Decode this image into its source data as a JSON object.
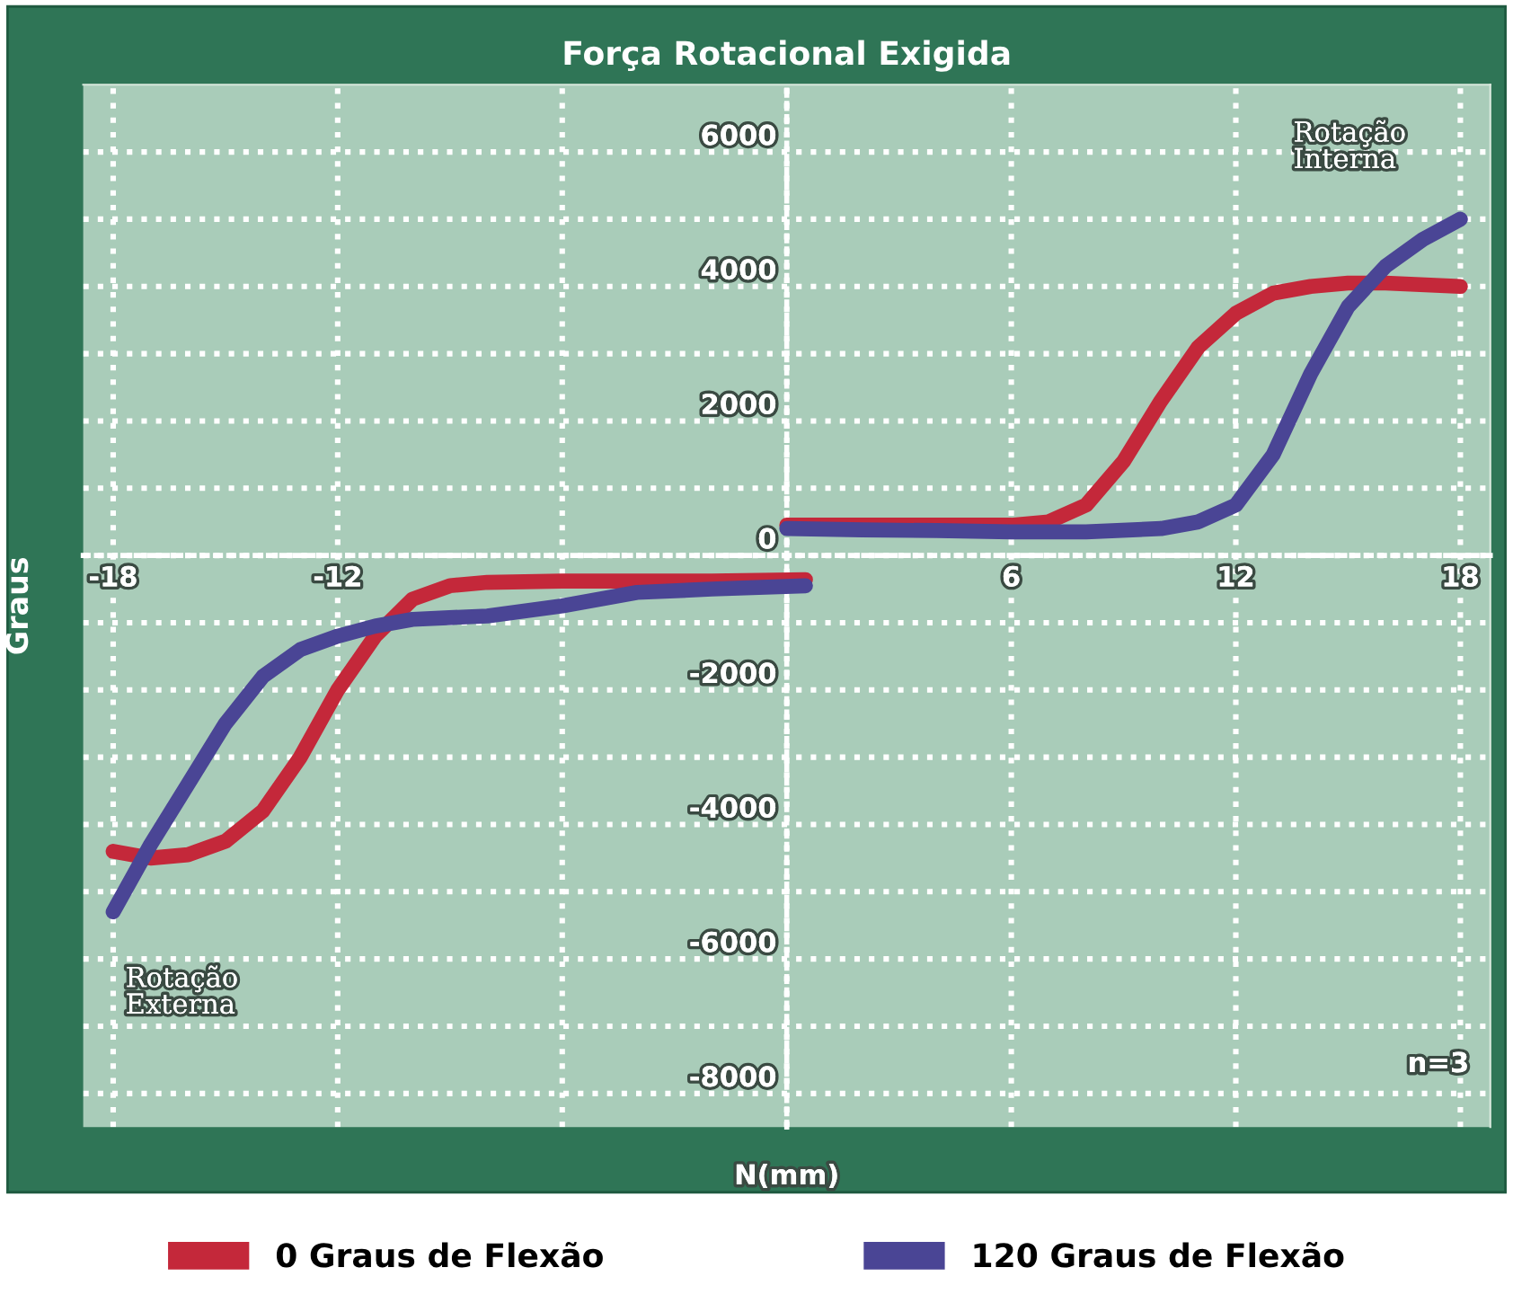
{
  "chart_data": {
    "type": "line",
    "title": "Força Rotacional Exigida",
    "xlabel": "N(mm)",
    "ylabel": "Graus",
    "xlim": [
      -18.8,
      18.8
    ],
    "ylim": [
      -8500,
      7000
    ],
    "xticks": [
      -18,
      -12,
      {
        "value": -6,
        "label": null
      },
      {
        "value": 0,
        "label": null
      },
      6,
      12,
      18
    ],
    "yticks": [
      -8000,
      {
        "value": -7000,
        "label": null
      },
      -6000,
      {
        "value": -5000,
        "label": null
      },
      -4000,
      {
        "value": -3000,
        "label": null
      },
      -2000,
      {
        "value": -1000,
        "label": null
      },
      0,
      {
        "value": 1000,
        "label": null
      },
      2000,
      {
        "value": 3000,
        "label": null
      },
      4000,
      {
        "value": 5000,
        "label": null
      },
      6000
    ],
    "grid": true,
    "legend": "bottom",
    "line_style": "solid",
    "marker": "none",
    "series": [
      {
        "name": "0 Graus de Flexão",
        "color": "#c4283a",
        "x": [
          -18,
          -17,
          -16,
          -15,
          -14,
          -13,
          -12,
          -11,
          -10,
          -9,
          -8,
          -6,
          -4,
          -2,
          0.5,
          0.25,
          0,
          2,
          4,
          6,
          7,
          8,
          9,
          10,
          11,
          12,
          13,
          14,
          15,
          16,
          18
        ],
        "values": [
          -4400,
          -4500,
          -4450,
          -4250,
          -3800,
          -3000,
          -2000,
          -1200,
          -650,
          -450,
          -400,
          -380,
          -380,
          -380,
          -360,
          null,
          450,
          450,
          450,
          450,
          500,
          750,
          1400,
          2300,
          3100,
          3600,
          3900,
          4000,
          4050,
          4050,
          4000
        ]
      },
      {
        "name": "120 Graus de Flexão",
        "color": "#4a4595",
        "x": [
          -18,
          -17,
          -16,
          -15,
          -14,
          -13,
          -12,
          -11,
          -10,
          -8,
          -6,
          -4,
          -2,
          0.5,
          0.25,
          0,
          2,
          4,
          6,
          8,
          10,
          11,
          12,
          13,
          14,
          15,
          16,
          17,
          18
        ],
        "values": [
          -5300,
          -4300,
          -3400,
          -2500,
          -1800,
          -1400,
          -1200,
          -1050,
          -950,
          -900,
          -750,
          -550,
          -500,
          -450,
          null,
          400,
          380,
          370,
          350,
          350,
          400,
          500,
          750,
          1500,
          2700,
          3700,
          4300,
          4700,
          5000
        ]
      }
    ],
    "annotations": [
      "Rotação\nInterna",
      "Rotação\nExterna",
      "n=3"
    ]
  }
}
